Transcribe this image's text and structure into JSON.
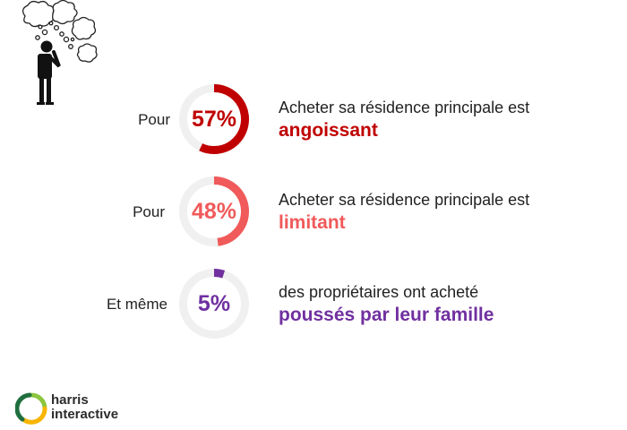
{
  "chart_data": {
    "type": "pie",
    "series": [
      {
        "value": 57,
        "display": "57%",
        "prefix": "Pour",
        "text": "Acheter sa résidence principale est",
        "emphasis": "angoissant",
        "color": "#c00000"
      },
      {
        "value": 48,
        "display": "48%",
        "prefix": "Pour",
        "text": "Acheter sa résidence principale est",
        "emphasis": "limitant",
        "color": "#f05a5a"
      },
      {
        "value": 5,
        "display": "5%",
        "prefix": "Et même",
        "text": "des propriétaires ont acheté",
        "emphasis": "poussés par leur famille",
        "color": "#7030a0"
      }
    ],
    "track_color": "#f0f0f0"
  },
  "brand": {
    "line1": "harris",
    "line2": "interactive",
    "logo_colors": [
      "#8dc63f",
      "#f7b500",
      "#1f6f3f"
    ]
  },
  "illustration": {
    "icon": "thinking-person-icon"
  }
}
